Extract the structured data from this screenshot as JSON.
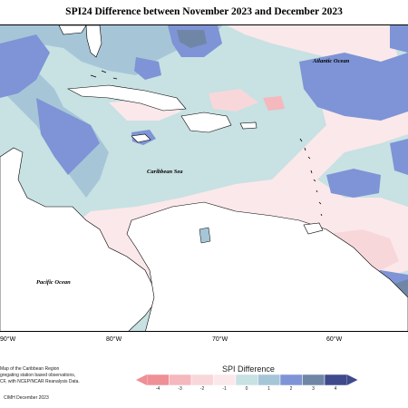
{
  "title": "SPI24 Difference between November 2023 and December 2023",
  "labels": {
    "atlantic": "Atlantic Ocean",
    "caribbean": "Caribbean Sea",
    "pacific": "Pacific Ocean"
  },
  "longitudes": [
    "90°W",
    "80°W",
    "70°W",
    "60°W"
  ],
  "footnote_lines": [
    "Map of the Caribbean Region",
    "gregating station based observations,",
    "CF, with NCEP/NCAR Reanalysis Data.",
    "CIMH December 2023"
  ],
  "legend": {
    "title": "SPI Difference",
    "ticks": [
      "-4",
      "-3",
      "-2",
      "-1",
      "0",
      "1",
      "2",
      "3",
      "4"
    ],
    "colors": [
      "#ef8f96",
      "#f4b8bd",
      "#f8d7da",
      "#fbe8ea",
      "#c8e1e3",
      "#a6c6d8",
      "#7e94d6",
      "#6f86a6",
      "#3f4a8c"
    ]
  }
}
